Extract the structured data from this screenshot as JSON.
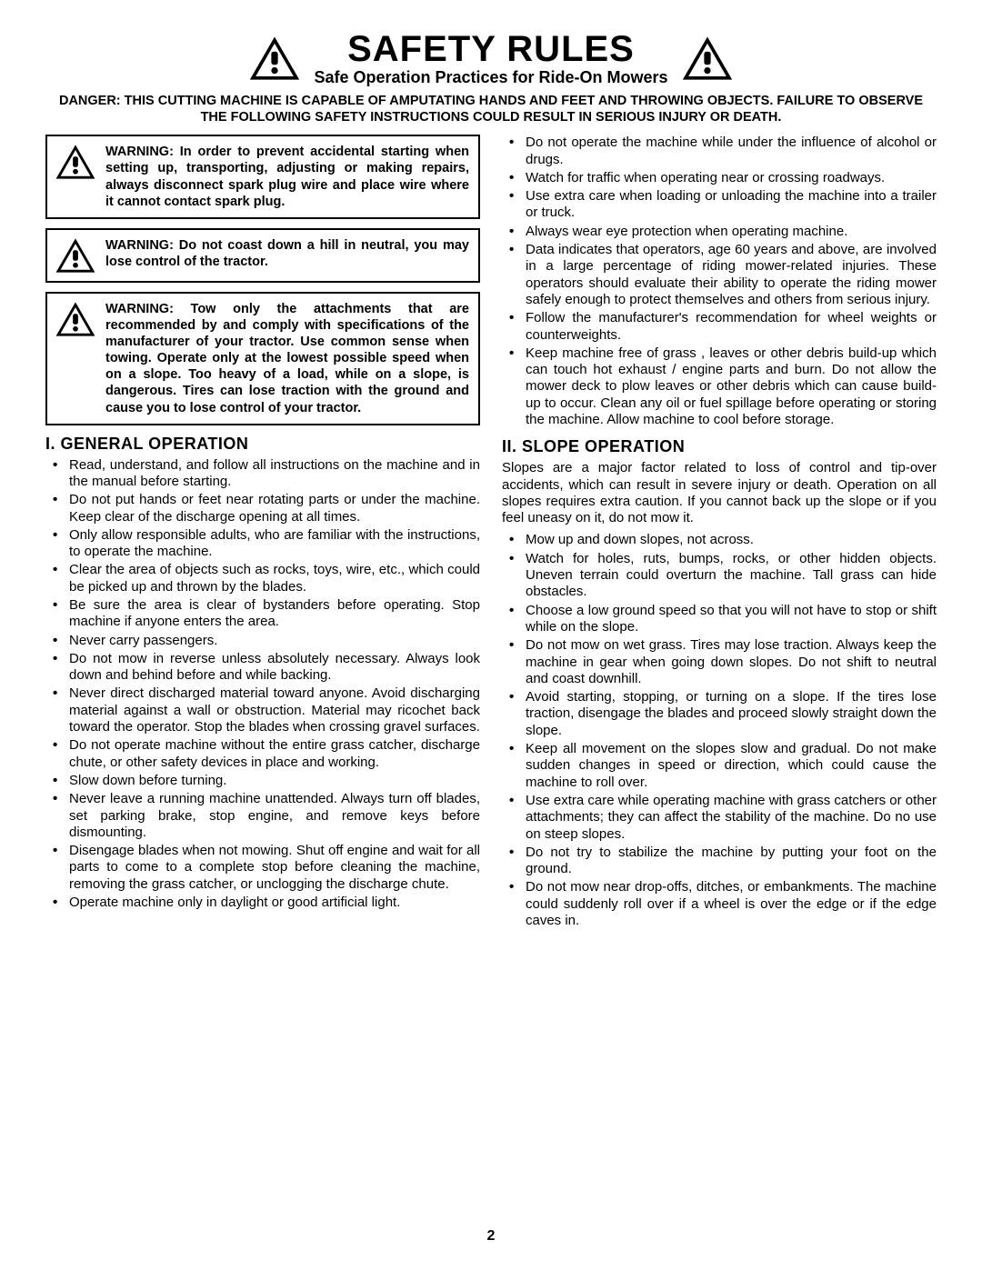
{
  "title": "SAFETY RULES",
  "subtitle": "Safe Operation Practices for Ride-On Mowers",
  "danger": "DANGER:  THIS CUTTING MACHINE IS CAPABLE OF AMPUTATING HANDS AND FEET AND THROWING OBJECTS.  FAILURE TO OBSERVE THE FOLLOWING SAFETY INSTRUCTIONS COULD RESULT IN SERIOUS INJURY OR DEATH.",
  "warnings": {
    "w1": "WARNING: In order to prevent accidental starting when setting up, transporting, adjusting or making repairs, always disconnect spark plug wire and place wire where it cannot contact spark plug.",
    "w2": "WARNING: Do not coast down a hill in neutral, you may lose control of the tractor.",
    "w3": "WARNING:  Tow only the attachments that are recommended by and comply with specifications of the manufacturer of your tractor. Use common sense when towing. Operate only at the lowest possible speed when on a slope.  Too heavy of a load, while on a slope, is dangerous.  Tires can lose traction with the ground and cause you to lose control of your tractor."
  },
  "section1": {
    "heading": "I. GENERAL OPERATION",
    "items": [
      "Read, understand, and follow all instructions on the machine and in the manual before starting.",
      "Do not put hands or feet near rotating parts or under the machine. Keep clear of the discharge opening at all times.",
      "Only allow responsible adults, who are familiar with the instructions, to operate the machine.",
      "Clear the area of objects such as rocks, toys, wire, etc., which could be picked up and thrown by the blades.",
      "Be sure the area is clear of bystanders before operating.  Stop machine if anyone enters the area.",
      "Never carry passengers.",
      "Do not mow in reverse unless absolutely necessary. Always look down and behind before and while backing.",
      "Never direct discharged material toward anyone. Avoid discharging material against a wall or obstruction. Material may ricochet back toward the operator. Stop the blades when crossing gravel surfaces.",
      "Do not operate machine without the entire grass catcher, discharge chute, or other safety devices in place and working.",
      "Slow down before turning.",
      "Never leave a running machine unattended.  Always turn off blades, set parking brake, stop engine, and remove keys before dismounting.",
      "Disengage blades when not mowing. Shut off engine and wait for all parts to come to a complete stop before cleaning the machine, removing the grass catcher, or unclogging the discharge chute.",
      "Operate machine only in daylight or good artificial light."
    ]
  },
  "right_top_items": [
    "Do not operate the machine while under the influence of alcohol or drugs.",
    "Watch for traffic when operating near or crossing roadways.",
    "Use extra care when loading or unloading the machine into a trailer or truck.",
    "Always wear eye protection when operating machine.",
    "Data indicates that operators, age 60 years and above, are involved in a large percentage of riding mower-related injuries.  These operators should evaluate their ability to operate the riding mower safely enough to protect themselves and others from serious injury.",
    "Follow the manufacturer's recommendation for wheel weights or counterweights.",
    "Keep machine free of grass , leaves or other debris build-up which can touch hot exhaust / engine parts and burn. Do not allow the mower deck to plow leaves or other debris which can cause build-up to occur.  Clean any oil or fuel spillage before operating or storing the machine. Allow machine to cool before storage."
  ],
  "section2": {
    "heading": "II. SLOPE OPERATION",
    "intro": "Slopes are a major factor related to loss of control and tip-over accidents, which can result in severe injury or death.  Operation on all slopes requires extra caution.  If you cannot back up the slope or if you feel uneasy on it, do not mow it.",
    "items": [
      "Mow up and down slopes, not across.",
      "Watch for holes, ruts, bumps, rocks, or other hidden objects.  Uneven terrain could overturn the machine.  Tall grass can hide obstacles.",
      "Choose a low ground speed so that you will not have to stop or shift while on the slope.",
      "Do not mow on wet grass. Tires may lose traction. Always keep the machine in gear when going down slopes. Do not shift to neutral and coast downhill.",
      "Avoid starting, stopping, or turning on a slope.  If the tires lose traction,  disengage the blades and proceed slowly straight down the slope.",
      "Keep all movement on the slopes slow and gradual.  Do not make sudden changes in speed or direction, which could cause the machine to roll over.",
      "Use extra care while operating machine with grass catchers or other attachments; they can affect the stability of the machine. Do no use on steep slopes.",
      "Do not  try to stabilize the machine by putting your foot on the ground.",
      "Do not mow near drop-offs, ditches, or embankments.  The machine could suddenly roll over if a wheel is over the edge or if the edge caves in."
    ]
  },
  "page_number": "2",
  "colors": {
    "black": "#000000",
    "white": "#ffffff"
  }
}
